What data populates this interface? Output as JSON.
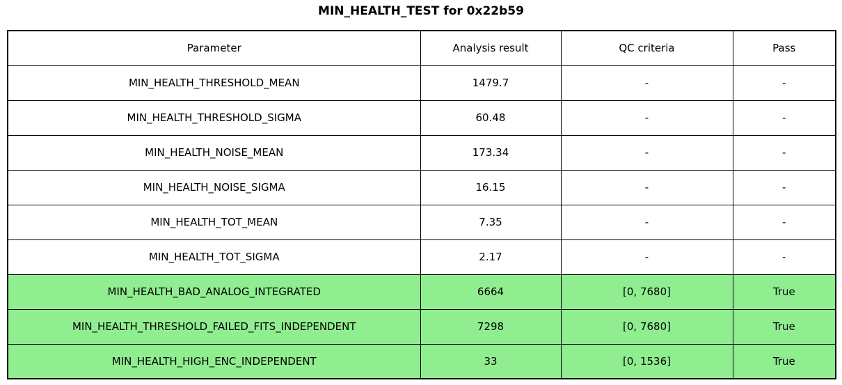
{
  "title": "MIN_HEALTH_TEST for 0x22b59",
  "colors": {
    "pass_row_bg": "#90EE90",
    "default_row_bg": "#FFFFFF",
    "border": "#000000",
    "text": "#000000"
  },
  "chart_data": {
    "type": "table",
    "title": "MIN_HEALTH_TEST for 0x22b59",
    "columns": [
      "Parameter",
      "Analysis result",
      "QC criteria",
      "Pass"
    ],
    "rows": [
      {
        "cells": [
          "MIN_HEALTH_THRESHOLD_MEAN",
          "1479.7",
          "-",
          "-"
        ],
        "highlighted": false
      },
      {
        "cells": [
          "MIN_HEALTH_THRESHOLD_SIGMA",
          "60.48",
          "-",
          "-"
        ],
        "highlighted": false
      },
      {
        "cells": [
          "MIN_HEALTH_NOISE_MEAN",
          "173.34",
          "-",
          "-"
        ],
        "highlighted": false
      },
      {
        "cells": [
          "MIN_HEALTH_NOISE_SIGMA",
          "16.15",
          "-",
          "-"
        ],
        "highlighted": false
      },
      {
        "cells": [
          "MIN_HEALTH_TOT_MEAN",
          "7.35",
          "-",
          "-"
        ],
        "highlighted": false
      },
      {
        "cells": [
          "MIN_HEALTH_TOT_SIGMA",
          "2.17",
          "-",
          "-"
        ],
        "highlighted": false
      },
      {
        "cells": [
          "MIN_HEALTH_BAD_ANALOG_INTEGRATED",
          "6664",
          "[0, 7680]",
          "True"
        ],
        "highlighted": true
      },
      {
        "cells": [
          "MIN_HEALTH_THRESHOLD_FAILED_FITS_INDEPENDENT",
          "7298",
          "[0, 7680]",
          "True"
        ],
        "highlighted": true
      },
      {
        "cells": [
          "MIN_HEALTH_HIGH_ENC_INDEPENDENT",
          "33",
          "[0, 1536]",
          "True"
        ],
        "highlighted": true
      }
    ],
    "legend_position": "none",
    "grid": true
  }
}
